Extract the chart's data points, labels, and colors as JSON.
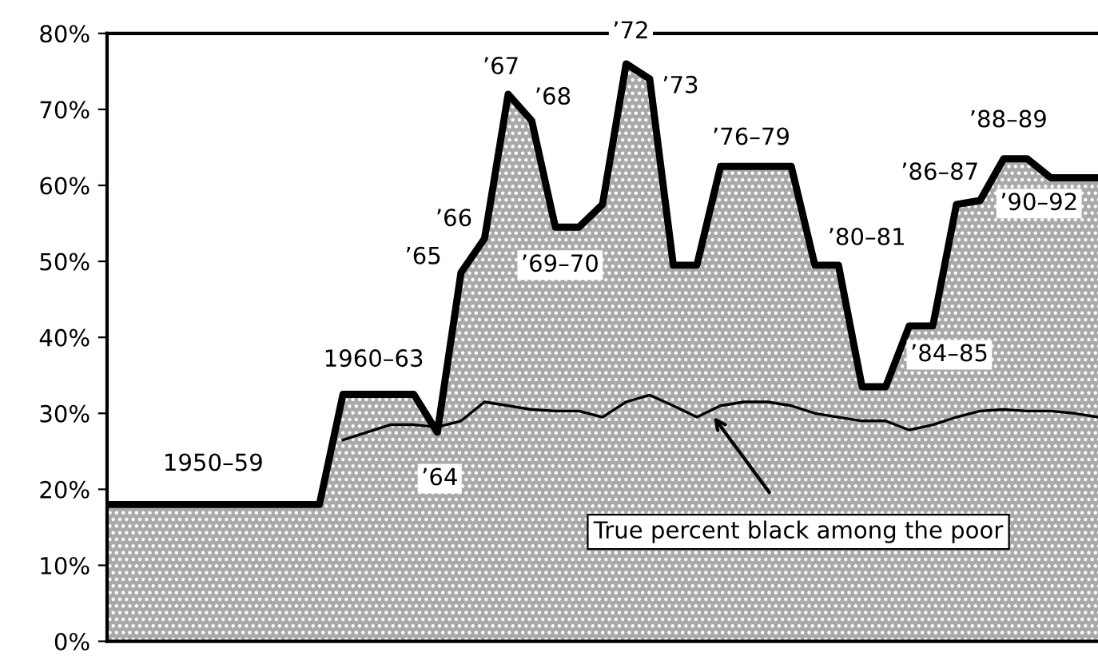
{
  "chart_data": {
    "type": "area",
    "categories": [
      null,
      null,
      null,
      null,
      null,
      null,
      null,
      null,
      null,
      null,
      null,
      null,
      null,
      null,
      null,
      null,
      null,
      null,
      null,
      null,
      null,
      null,
      null,
      null,
      null,
      null,
      null,
      null,
      null,
      null,
      null,
      null,
      null,
      null,
      null,
      null,
      null,
      null,
      null,
      null,
      null,
      null,
      null
    ],
    "series": [
      {
        "color": "#a9a9a9",
        "values": [
          18,
          18,
          18,
          18,
          18,
          18,
          18,
          18,
          18,
          18,
          32.5,
          32.5,
          32.5,
          32.5,
          27.5,
          48.5,
          53,
          72,
          68.5,
          54.5,
          54.5,
          57.5,
          76,
          74,
          49.5,
          49.5,
          62.5,
          62.5,
          62.5,
          62.5,
          49.5,
          49.5,
          33.5,
          33.5,
          41.5,
          41.5,
          57.5,
          58,
          63.5,
          63.5,
          61,
          61,
          61
        ]
      },
      {
        "type": "line",
        "name": "True percent black among the poor",
        "color": "#000000",
        "values": [
          null,
          null,
          null,
          null,
          null,
          null,
          null,
          null,
          null,
          null,
          26.5,
          27.5,
          28.5,
          28.5,
          28.2,
          29,
          31.5,
          31,
          30.5,
          30.3,
          30.3,
          29.5,
          31.5,
          32.4,
          31,
          29.5,
          31,
          31.5,
          31.5,
          31,
          30,
          29.5,
          29,
          29,
          27.8,
          28.5,
          29.5,
          30.3,
          30.5,
          30.3,
          30.3,
          30,
          29.5
        ]
      }
    ],
    "ylim": [
      0,
      80
    ],
    "yticks": [
      {
        "value": 0,
        "label": "0%"
      },
      {
        "value": 10,
        "label": "10%"
      },
      {
        "value": 20,
        "label": "20%"
      },
      {
        "value": 30,
        "label": "30%"
      },
      {
        "value": 40,
        "label": "40%"
      },
      {
        "value": 50,
        "label": "50%"
      },
      {
        "value": 60,
        "label": "60%"
      },
      {
        "value": 70,
        "label": "70%"
      },
      {
        "value": 80,
        "label": "80%"
      }
    ],
    "tick_labels": "y",
    "annotations": [
      "1950–59",
      "1960–63",
      "’64",
      "’65",
      "’66",
      "’67",
      "’68",
      "’69–70",
      "’72",
      "’73",
      "’76–79",
      "’80–81",
      "’84–85",
      "’86–87",
      "’88–89",
      "’90–92"
    ]
  }
}
